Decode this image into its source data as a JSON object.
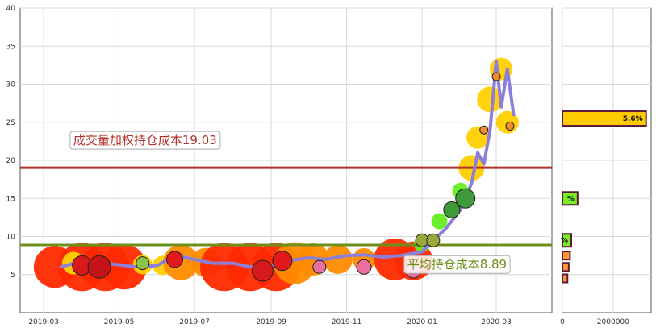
{
  "colors": {
    "background": "#ffffff",
    "grid": "#d9d9d9",
    "spine": "#555555",
    "price_line": "#8c7fd9",
    "vwap_line": "#b0302a",
    "avg_line": "#6e8f1a",
    "bubble_red": "#ff2a00",
    "bubble_orange": "#ff8c00",
    "bubble_yellow": "#ffd000",
    "bubble_green": "#66ee22",
    "bar_fill_main": "#ffcc00",
    "bar_fill_green": "#77ee22",
    "bar_fill_orange": "#ff9933",
    "bar_border": "#5a1a3a"
  },
  "chart_data": [
    {
      "type": "line",
      "ylim": [
        0,
        40
      ],
      "yticks": [
        "5",
        "10",
        "15",
        "20",
        "25",
        "30",
        "35",
        "40"
      ],
      "ytick_values": [
        5,
        10,
        15,
        20,
        25,
        30,
        35,
        40
      ],
      "xlim": [
        "2019-02-10",
        "2020-04-15"
      ],
      "xticks": [
        "2019-03",
        "2019-05",
        "2019-07",
        "2019-09",
        "2019-11",
        "2020-01",
        "2020-03"
      ],
      "xtick_dates": [
        "2019-03-01",
        "2019-05-01",
        "2019-07-01",
        "2019-09-01",
        "2019-11-01",
        "2020-01-01",
        "2020-03-01"
      ],
      "grid": true,
      "series": [
        {
          "x": [
            "2019-03-15",
            "2019-04-01",
            "2019-04-15",
            "2019-05-01",
            "2019-05-15",
            "2019-06-01",
            "2019-06-15",
            "2019-07-01",
            "2019-07-15",
            "2019-08-01",
            "2019-08-15",
            "2019-09-01",
            "2019-09-15",
            "2019-10-01",
            "2019-10-15",
            "2019-11-01",
            "2019-11-15",
            "2019-12-01",
            "2019-12-15",
            "2020-01-01",
            "2020-01-10",
            "2020-01-20",
            "2020-02-01",
            "2020-02-10",
            "2020-02-15",
            "2020-02-20",
            "2020-02-25",
            "2020-03-01",
            "2020-03-05",
            "2020-03-10",
            "2020-03-15"
          ],
          "y": [
            6.0,
            6.8,
            6.5,
            6.3,
            6.0,
            6.2,
            7.5,
            7.0,
            6.5,
            6.5,
            6.0,
            6.2,
            6.8,
            7.2,
            7.0,
            7.5,
            7.6,
            7.3,
            7.5,
            8.0,
            9.5,
            11.0,
            13.5,
            17.0,
            21.0,
            19.5,
            24.0,
            33.0,
            27.0,
            32.0,
            26.0
          ]
        }
      ],
      "bubbles": [
        {
          "x": "2019-03-10",
          "y": 6.0,
          "size": 26,
          "color": "red"
        },
        {
          "x": "2019-04-01",
          "y": 6.0,
          "size": 30,
          "color": "red"
        },
        {
          "x": "2019-04-20",
          "y": 6.0,
          "size": 30,
          "color": "red"
        },
        {
          "x": "2019-05-05",
          "y": 6.0,
          "size": 28,
          "color": "red"
        },
        {
          "x": "2019-03-25",
          "y": 6.5,
          "size": 14,
          "color": "yellow"
        },
        {
          "x": "2019-05-20",
          "y": 6.3,
          "size": 12,
          "color": "yellow"
        },
        {
          "x": "2019-06-05",
          "y": 6.2,
          "size": 12,
          "color": "yellow"
        },
        {
          "x": "2019-06-20",
          "y": 6.6,
          "size": 22,
          "color": "orange"
        },
        {
          "x": "2019-07-10",
          "y": 6.6,
          "size": 18,
          "color": "orange"
        },
        {
          "x": "2019-07-25",
          "y": 6.0,
          "size": 30,
          "color": "red"
        },
        {
          "x": "2019-08-15",
          "y": 6.0,
          "size": 30,
          "color": "red"
        },
        {
          "x": "2019-09-05",
          "y": 6.0,
          "size": 30,
          "color": "red"
        },
        {
          "x": "2019-09-20",
          "y": 6.5,
          "size": 26,
          "color": "orange"
        },
        {
          "x": "2019-10-05",
          "y": 7.0,
          "size": 20,
          "color": "orange"
        },
        {
          "x": "2019-10-25",
          "y": 7.0,
          "size": 18,
          "color": "orange"
        },
        {
          "x": "2019-11-15",
          "y": 7.0,
          "size": 14,
          "color": "orange"
        },
        {
          "x": "2019-12-10",
          "y": 7.0,
          "size": 26,
          "color": "red"
        },
        {
          "x": "2019-12-25",
          "y": 6.8,
          "size": 24,
          "color": "red"
        },
        {
          "x": "2020-01-01",
          "y": 9.0,
          "size": 10,
          "color": "green"
        },
        {
          "x": "2020-01-15",
          "y": 12.0,
          "size": 10,
          "color": "green"
        },
        {
          "x": "2020-02-01",
          "y": 16.0,
          "size": 10,
          "color": "green"
        },
        {
          "x": "2020-02-10",
          "y": 19.0,
          "size": 16,
          "color": "yellow"
        },
        {
          "x": "2020-02-15",
          "y": 23.0,
          "size": 14,
          "color": "yellow"
        },
        {
          "x": "2020-02-25",
          "y": 28.0,
          "size": 16,
          "color": "yellow"
        },
        {
          "x": "2020-03-05",
          "y": 32.0,
          "size": 14,
          "color": "yellow"
        },
        {
          "x": "2020-03-10",
          "y": 25.0,
          "size": 14,
          "color": "yellow"
        }
      ],
      "hlines": [
        {
          "y": 19.03,
          "label": "成交量加权持仓成本19.03",
          "label_x": "2019-03-25",
          "label_y": 22.1,
          "color": "vwap"
        },
        {
          "y": 8.89,
          "label": "平均持仓成本8.89",
          "label_x": "2019-12-20",
          "label_y": 5.8,
          "color": "avg"
        }
      ]
    },
    {
      "type": "bar",
      "orientation": "horizontal",
      "xlim": [
        0,
        3500000
      ],
      "ylim": [
        0,
        40
      ],
      "xticks": [
        "0",
        "2000000"
      ],
      "xtick_values": [
        0,
        2000000
      ],
      "bars": [
        {
          "y": 25.5,
          "value": 3300000,
          "label": "5.6%",
          "color": "main"
        },
        {
          "y": 15.0,
          "value": 600000,
          "label": "%",
          "color": "green"
        },
        {
          "y": 9.5,
          "value": 350000,
          "label": "%",
          "color": "green"
        },
        {
          "y": 7.5,
          "value": 300000,
          "label": "",
          "color": "orange"
        },
        {
          "y": 6.0,
          "value": 250000,
          "label": "",
          "color": "orange"
        },
        {
          "y": 4.5,
          "value": 200000,
          "label": "",
          "color": "orange"
        }
      ]
    }
  ]
}
